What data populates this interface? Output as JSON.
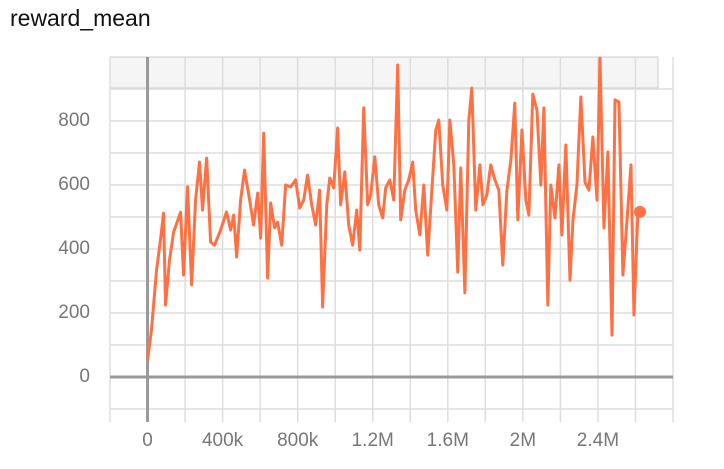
{
  "chart_data": {
    "type": "line",
    "title": "reward_mean",
    "series": [
      {
        "name": "reward_mean",
        "color": "#ff7043",
        "x": [
          0,
          21000,
          48000,
          69000,
          85000,
          96000,
          117000,
          139000,
          176000,
          192000,
          213000,
          235000,
          256000,
          277000,
          293000,
          315000,
          336000,
          357000,
          389000,
          421000,
          443000,
          459000,
          475000,
          496000,
          517000,
          544000,
          565000,
          587000,
          603000,
          619000,
          640000,
          656000,
          677000,
          693000,
          715000,
          736000,
          763000,
          789000,
          811000,
          832000,
          853000,
          875000,
          896000,
          917000,
          933000,
          955000,
          971000,
          992000,
          1013000,
          1029000,
          1051000,
          1072000,
          1093000,
          1115000,
          1131000,
          1152000,
          1173000,
          1189000,
          1211000,
          1232000,
          1253000,
          1269000,
          1291000,
          1312000,
          1333000,
          1349000,
          1371000,
          1392000,
          1413000,
          1429000,
          1451000,
          1472000,
          1493000,
          1515000,
          1536000,
          1552000,
          1573000,
          1595000,
          1611000,
          1632000,
          1653000,
          1669000,
          1691000,
          1712000,
          1728000,
          1749000,
          1771000,
          1787000,
          1808000,
          1829000,
          1851000,
          1872000,
          1893000,
          1915000,
          1936000,
          1957000,
          1973000,
          1995000,
          2016000,
          2032000,
          2053000,
          2075000,
          2096000,
          2112000,
          2133000,
          2149000,
          2171000,
          2192000,
          2208000,
          2229000,
          2251000,
          2267000,
          2288000,
          2309000,
          2331000,
          2352000,
          2373000,
          2395000,
          2411000,
          2432000,
          2453000,
          2475000,
          2491000,
          2512000,
          2533000,
          2555000,
          2576000,
          2592000,
          2613000,
          2624000
        ],
        "values": [
          53,
          147,
          334,
          428,
          512,
          225,
          365,
          453,
          515,
          319,
          594,
          288,
          553,
          672,
          522,
          684,
          422,
          412,
          459,
          516,
          459,
          506,
          375,
          553,
          647,
          553,
          475,
          575,
          434,
          762,
          309,
          544,
          466,
          484,
          412,
          600,
          594,
          616,
          528,
          553,
          631,
          538,
          475,
          584,
          219,
          538,
          622,
          591,
          778,
          538,
          641,
          475,
          412,
          522,
          397,
          841,
          538,
          569,
          688,
          538,
          497,
          591,
          616,
          553,
          975,
          491,
          584,
          616,
          672,
          522,
          444,
          600,
          381,
          584,
          772,
          803,
          600,
          522,
          803,
          663,
          328,
          653,
          263,
          803,
          903,
          522,
          663,
          538,
          569,
          663,
          616,
          584,
          350,
          584,
          678,
          856,
          491,
          772,
          553,
          506,
          884,
          834,
          600,
          841,
          225,
          600,
          497,
          663,
          444,
          725,
          303,
          491,
          600,
          875,
          609,
          584,
          750,
          553,
          997,
          466,
          703,
          131,
          866,
          859,
          319,
          491,
          663,
          194,
          516,
          516
        ]
      }
    ],
    "xlim": [
      -200000,
      2800000
    ],
    "ylim": [
      -103,
      1000
    ],
    "xticks": [
      0,
      {
        "value": 400000,
        "label": "400k"
      },
      {
        "value": 800000,
        "label": "800k"
      },
      {
        "value": 1200000,
        "label": "1.2M"
      },
      {
        "value": 1600000,
        "label": "1.6M"
      },
      {
        "value": 2000000,
        "label": "2M"
      },
      {
        "value": 2400000,
        "label": "2.4M"
      }
    ],
    "yticks": [
      0,
      200,
      400,
      600,
      800
    ],
    "xgrid": [
      -200000,
      0,
      200000,
      400000,
      600000,
      800000,
      1000000,
      1200000,
      1400000,
      1600000,
      1800000,
      2000000,
      2200000,
      2400000,
      2600000,
      2800000
    ],
    "ygrid": [
      -100,
      0,
      100,
      200,
      300,
      400,
      500,
      600,
      700,
      800,
      900
    ]
  }
}
